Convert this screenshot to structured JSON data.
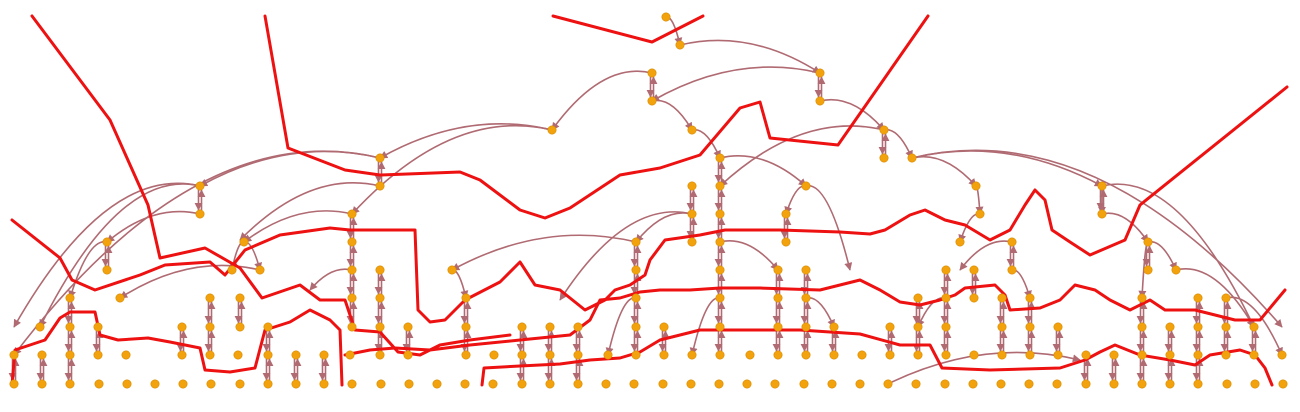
{
  "diagram": {
    "kind": "tree-graph",
    "colors": {
      "background": "#ffffff",
      "node_fill": "#f2a20c",
      "edge_stroke": "#b06a72",
      "path_stroke": "#ee1111"
    },
    "node_shape": "circle",
    "edge_style": "arrowed curves",
    "labels": []
  }
}
